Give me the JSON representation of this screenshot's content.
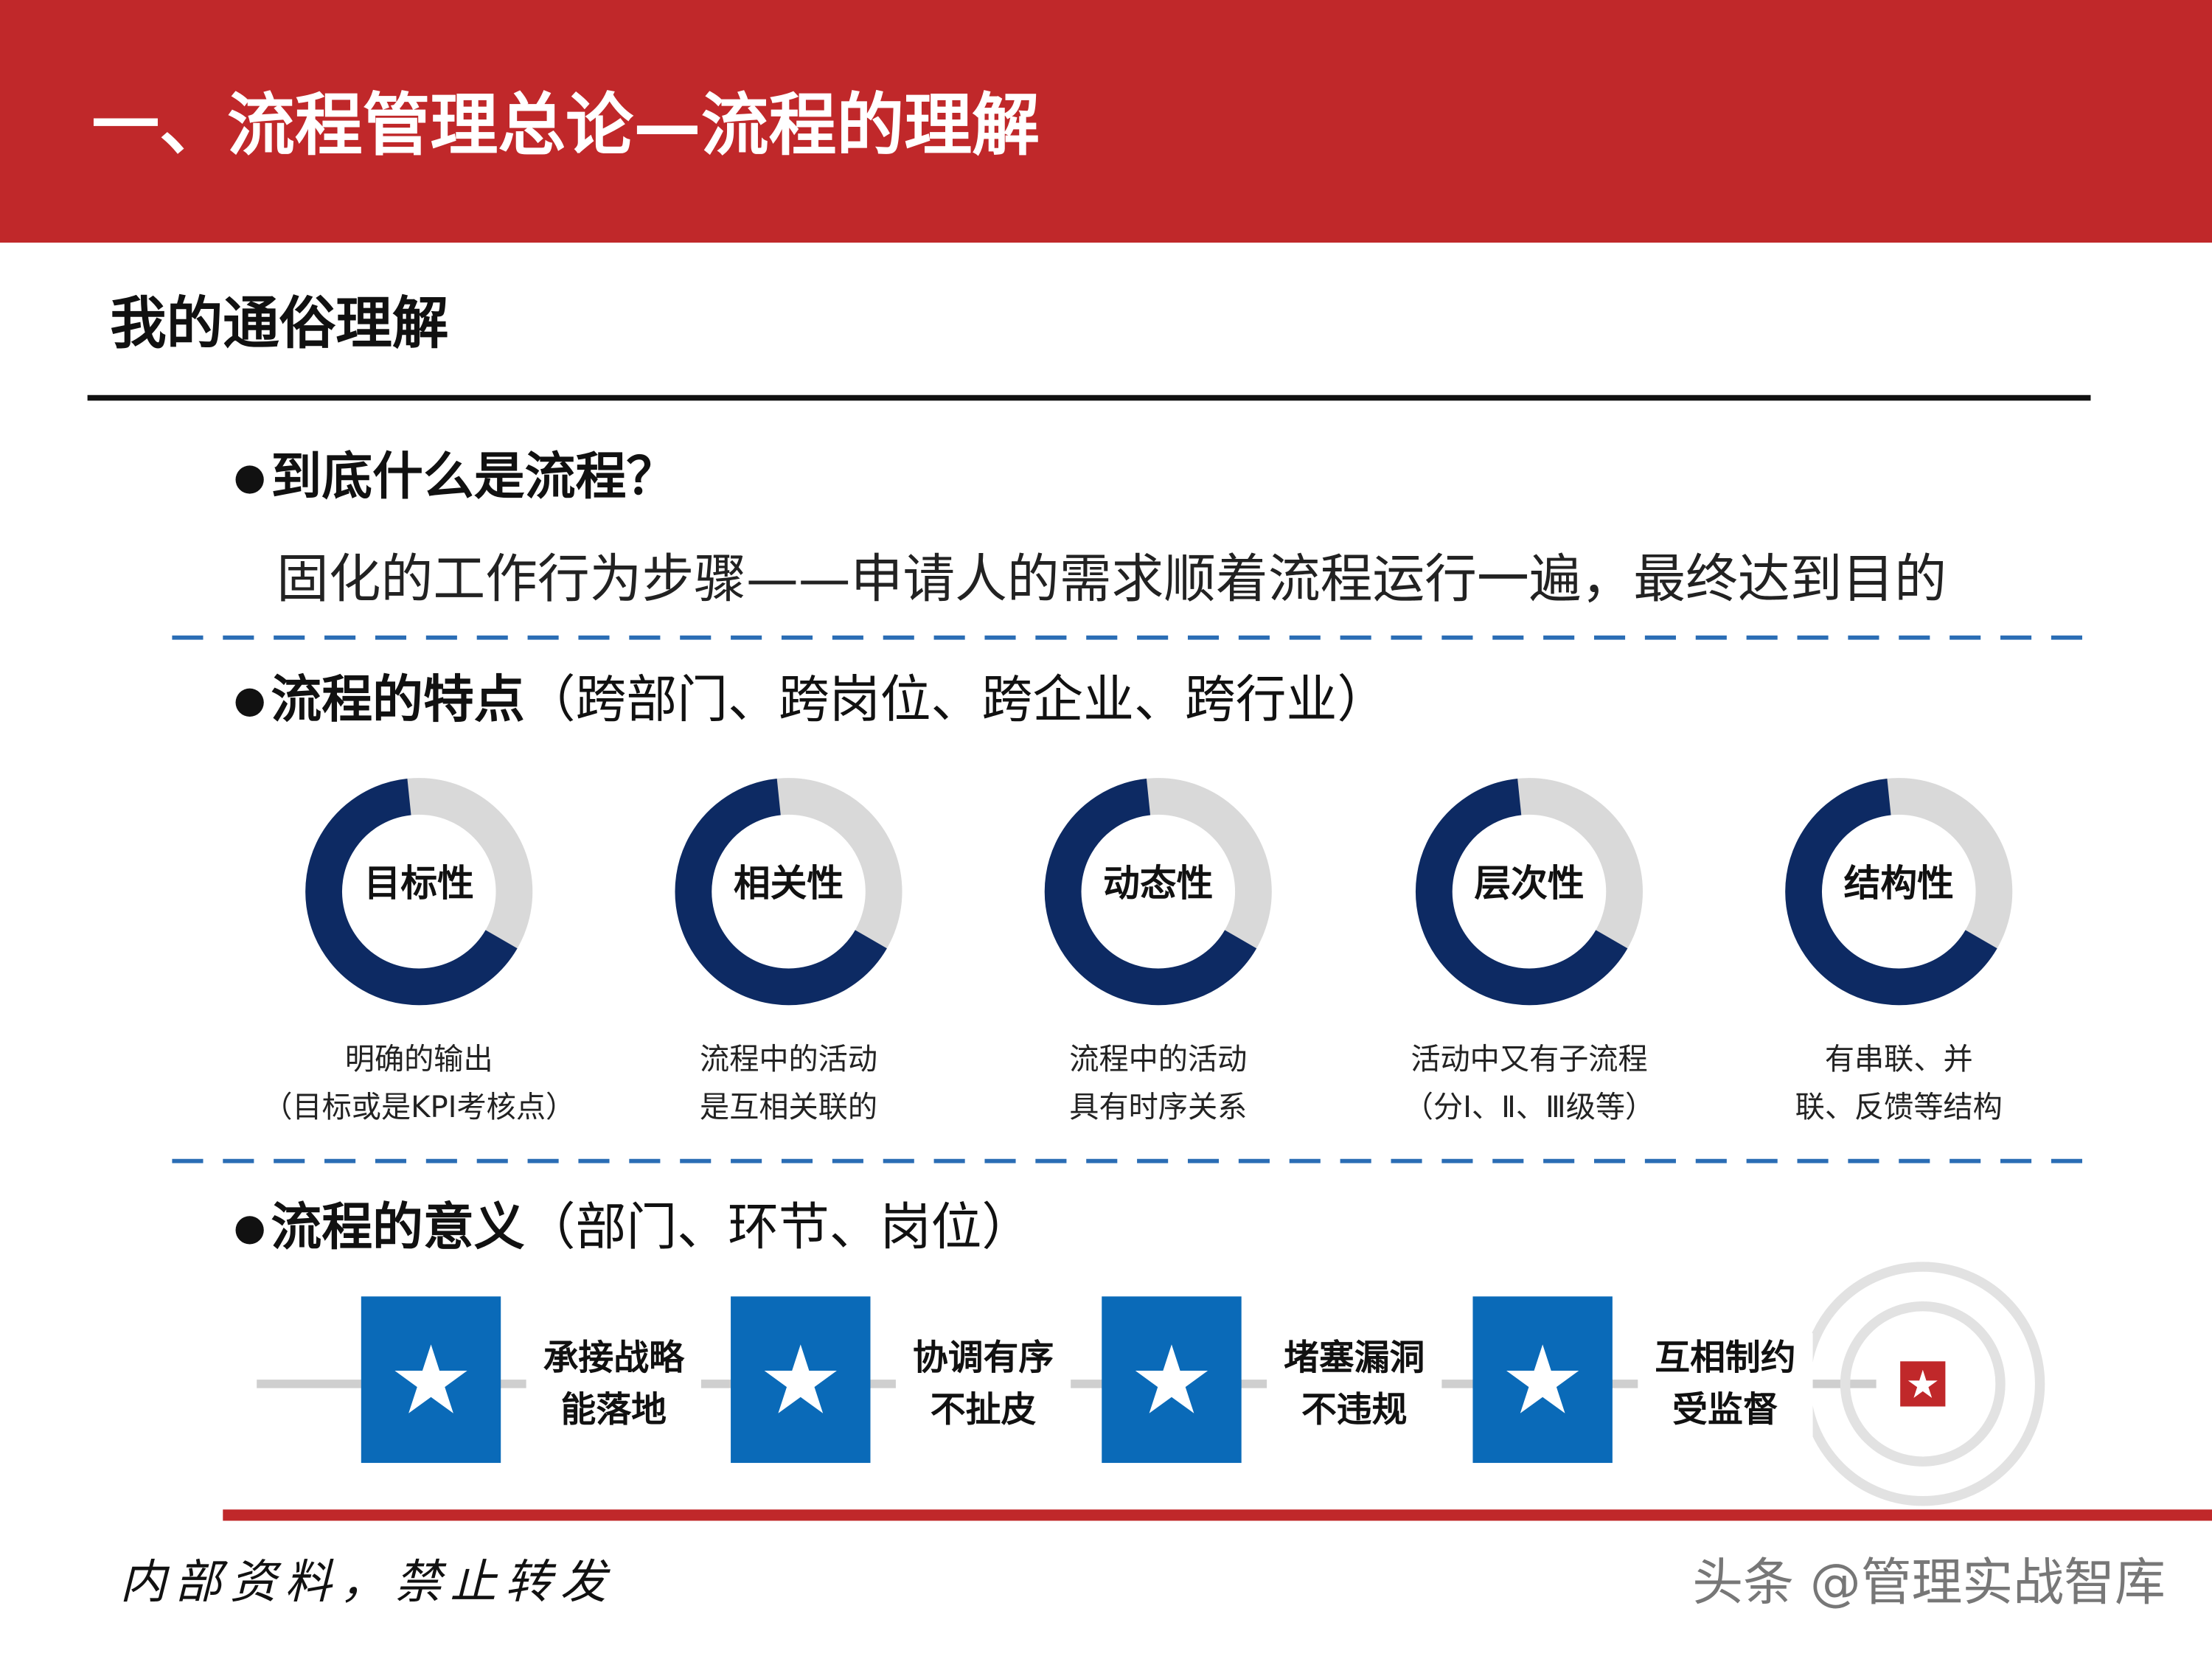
{
  "header": {
    "title": "一、流程管理总论—流程的理解"
  },
  "section": {
    "title": "我的通俗理解"
  },
  "question": {
    "heading": "到底什么是流程？",
    "answer": "固化的工作行为步骤——申请人的需求顺着流程运行一遍，最终达到目的"
  },
  "features": {
    "heading": "流程的特点",
    "note": "（跨部门、跨岗位、跨企业、跨行业）",
    "items": [
      {
        "label": "目标性",
        "desc": [
          "明确的输出",
          "（目标或是KPI考核点）"
        ]
      },
      {
        "label": "相关性",
        "desc": [
          "流程中的活动",
          "是互相关联的"
        ]
      },
      {
        "label": "动态性",
        "desc": [
          "流程中的活动",
          "具有时序关系"
        ]
      },
      {
        "label": "层次性",
        "desc": [
          "活动中又有子流程",
          "（分Ⅰ、Ⅱ、Ⅲ级等）"
        ]
      },
      {
        "label": "结构性",
        "desc": [
          "有串联、并",
          "联、反馈等结构"
        ]
      }
    ]
  },
  "significance": {
    "heading": "流程的意义",
    "note": "（部门、环节、岗位）",
    "steps": [
      [
        "承接战略",
        "能落地"
      ],
      [
        "协调有序",
        "不扯皮"
      ],
      [
        "堵塞漏洞",
        "不违规"
      ],
      [
        "互相制约",
        "受监督"
      ]
    ]
  },
  "footer": {
    "notice": "内部资料，禁止转发",
    "watermark": "头条 @管理实战智库"
  }
}
